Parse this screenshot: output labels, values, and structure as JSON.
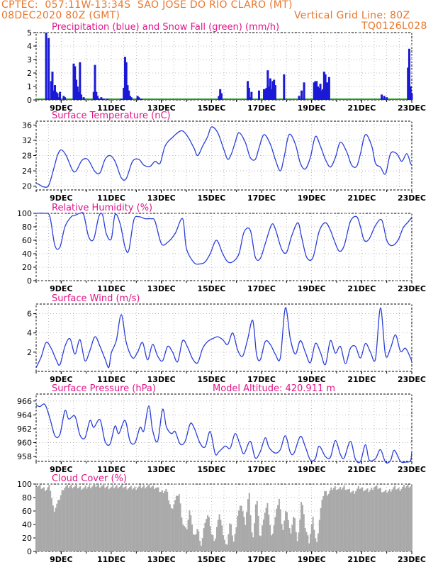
{
  "header": {
    "line1": "CPTEC:  057:11W-13:34S  SAO JOSE DO RIO CLARO (MT)",
    "line2_left": "08DEC2020 80Z (GMT)",
    "line2_right": "Vertical Grid Line: 80Z",
    "code": "TQ0126L028"
  },
  "colors": {
    "header_text": "#e8772e",
    "panel_title": "#e0158a",
    "line": "#2b3fd8",
    "precip_bar": "#1a1ad6",
    "snow_line": "#1a9a1a",
    "cloud_fill": "#a9a9a9",
    "grid": "#aaaaaa"
  },
  "date_ticks": [
    "9DEC",
    "11DEC",
    "13DEC",
    "15DEC",
    "17DEC",
    "19DEC",
    "21DEC",
    "23DEC"
  ],
  "chart_data": [
    {
      "id": "precip",
      "type": "bar",
      "title": "Precipitation (blue) and Snow Fall (green) (mm/h)",
      "ylim": [
        0,
        5
      ],
      "yticks": [
        0,
        1,
        2,
        3,
        4,
        5
      ],
      "grid": true,
      "x_day": [
        8.4,
        8.5,
        8.6,
        8.65,
        8.7,
        8.75,
        8.8,
        8.85,
        8.9,
        8.95,
        9.1,
        9.15,
        9.5,
        9.55,
        9.6,
        9.65,
        9.7,
        9.75,
        9.8,
        9.9,
        10.3,
        10.35,
        10.4,
        10.45,
        10.5,
        10.55,
        10.6,
        10.65,
        10.7,
        10.85,
        11.4,
        11.5,
        11.55,
        11.6,
        11.65,
        11.7,
        11.75,
        11.8,
        12.05,
        12.1,
        12.2,
        15.3,
        15.35,
        15.4,
        16.45,
        16.5,
        16.55,
        16.6,
        16.9,
        17.1,
        17.15,
        17.2,
        17.25,
        17.3,
        17.35,
        17.4,
        17.45,
        17.5,
        17.55,
        17.9,
        18.5,
        18.6,
        18.7,
        19.1,
        19.15,
        19.2,
        19.25,
        19.3,
        19.35,
        19.4,
        19.45,
        19.5,
        19.55,
        19.6,
        19.65,
        19.7,
        21.8,
        21.9,
        22.0,
        22.85,
        22.9,
        22.95,
        23.0
      ],
      "series": [
        {
          "name": "Precipitation",
          "values": [
            5.0,
            4.6,
            1.4,
            2.1,
            0.7,
            1.1,
            0.6,
            0.5,
            0.2,
            0.6,
            0.3,
            0.2,
            2.7,
            2.5,
            1.5,
            1.0,
            0.6,
            2.8,
            0.4,
            0.2,
            0.6,
            2.6,
            0.6,
            0.3,
            0.1,
            0.1,
            0.2,
            0.1,
            0.1,
            0.1,
            0.1,
            0.9,
            3.2,
            2.8,
            1.1,
            0.7,
            0.3,
            0.2,
            0.3,
            0.2,
            0.1,
            0.3,
            0.8,
            0.5,
            1.4,
            0.9,
            0.2,
            0.6,
            0.7,
            0.8,
            0.8,
            0.9,
            2.2,
            1.0,
            1.6,
            0.8,
            1.4,
            1.5,
            1.1,
            1.9,
            0.3,
            0.7,
            1.3,
            1.3,
            1.4,
            1.4,
            1.0,
            0.9,
            1.2,
            0.7,
            0.8,
            2.1,
            1.9,
            1.3,
            1.3,
            1.7,
            0.4,
            0.3,
            0.2,
            2.4,
            3.8,
            1.0,
            0.5
          ]
        },
        {
          "name": "Snow Fall",
          "values": [
            0,
            0
          ]
        }
      ]
    },
    {
      "id": "temp",
      "type": "line",
      "title": "Surface Temperature (nC)",
      "ylim": [
        19,
        37
      ],
      "yticks": [
        20,
        24,
        28,
        32,
        36
      ],
      "grid": true,
      "x_day": [
        8.0,
        8.15,
        8.3,
        8.5,
        8.7,
        8.85,
        9.0,
        9.2,
        9.45,
        9.6,
        9.8,
        9.95,
        10.1,
        10.35,
        10.55,
        10.75,
        10.95,
        11.15,
        11.4,
        11.6,
        11.85,
        12.1,
        12.3,
        12.55,
        12.75,
        12.95,
        13.15,
        13.45,
        13.8,
        14.05,
        14.3,
        14.45,
        14.65,
        14.85,
        15.0,
        15.25,
        15.5,
        15.65,
        15.8,
        15.95,
        16.1,
        16.35,
        16.55,
        16.75,
        16.9,
        17.1,
        17.35,
        17.55,
        17.75,
        17.9,
        18.1,
        18.35,
        18.55,
        18.75,
        18.95,
        19.15,
        19.35,
        19.55,
        19.75,
        19.95,
        20.15,
        20.4,
        20.6,
        20.8,
        20.95,
        21.15,
        21.4,
        21.55,
        21.75,
        21.95,
        22.15,
        22.4,
        22.6,
        22.8,
        22.95,
        23.0
      ],
      "values": [
        20.8,
        20.3,
        19.8,
        20.2,
        24.5,
        28.0,
        29.5,
        28.0,
        24.2,
        24.0,
        26.5,
        27.2,
        26.7,
        23.8,
        23.5,
        27.0,
        28.0,
        26.5,
        22.2,
        22.0,
        26.5,
        27.0,
        25.5,
        25.2,
        26.5,
        26.0,
        30.5,
        32.8,
        34.5,
        33.0,
        30.0,
        28.0,
        30.5,
        33.0,
        35.5,
        34.0,
        29.5,
        27.0,
        28.5,
        31.5,
        34.0,
        31.5,
        27.5,
        27.0,
        30.0,
        33.5,
        31.0,
        27.0,
        24.0,
        27.5,
        33.5,
        31.0,
        26.0,
        24.5,
        27.5,
        33.0,
        30.5,
        27.0,
        25.0,
        27.5,
        31.5,
        29.0,
        25.5,
        25.2,
        28.5,
        33.5,
        30.5,
        26.0,
        25.0,
        23.2,
        28.5,
        28.5,
        26.5,
        28.5,
        26.0,
        25.5
      ]
    },
    {
      "id": "rh",
      "type": "line",
      "title": "Relative Humidity (%)",
      "ylim": [
        0,
        100
      ],
      "yticks": [
        0,
        20,
        40,
        60,
        80,
        100
      ],
      "grid": true,
      "x_day": [
        8.0,
        8.35,
        8.55,
        8.75,
        8.95,
        9.15,
        9.4,
        9.55,
        9.75,
        9.9,
        10.1,
        10.3,
        10.5,
        10.65,
        10.8,
        11.0,
        11.15,
        11.35,
        11.55,
        11.7,
        11.9,
        12.1,
        12.35,
        12.6,
        12.75,
        13.0,
        13.25,
        13.55,
        13.85,
        14.0,
        14.3,
        14.55,
        14.75,
        14.95,
        15.2,
        15.45,
        15.65,
        15.85,
        16.1,
        16.3,
        16.55,
        16.75,
        16.95,
        17.15,
        17.4,
        17.55,
        17.8,
        18.0,
        18.2,
        18.45,
        18.6,
        18.8,
        19.05,
        19.3,
        19.55,
        19.75,
        19.9,
        20.1,
        20.3,
        20.55,
        20.8,
        20.95,
        21.1,
        21.3,
        21.55,
        21.8,
        22.0,
        22.2,
        22.45,
        22.65,
        22.85,
        23.0
      ],
      "values": [
        100,
        100,
        95,
        52,
        50,
        80,
        95,
        97,
        100,
        98,
        65,
        62,
        95,
        98,
        70,
        62,
        98,
        85,
        50,
        45,
        90,
        95,
        92,
        92,
        88,
        55,
        57,
        70,
        92,
        48,
        27,
        25,
        28,
        40,
        60,
        40,
        28,
        28,
        40,
        72,
        75,
        35,
        33,
        55,
        83,
        77,
        47,
        42,
        66,
        86,
        65,
        35,
        34,
        73,
        86,
        75,
        60,
        44,
        52,
        88,
        95,
        80,
        60,
        62,
        82,
        90,
        60,
        52,
        60,
        78,
        87,
        94
      ]
    },
    {
      "id": "wind",
      "type": "line",
      "title": "Surface Wind (m/s)",
      "ylim": [
        0,
        7
      ],
      "yticks": [
        2,
        4,
        6
      ],
      "grid": true,
      "x_day": [
        8.0,
        8.2,
        8.4,
        8.6,
        8.8,
        8.95,
        9.15,
        9.35,
        9.55,
        9.75,
        9.95,
        10.15,
        10.35,
        10.55,
        10.75,
        10.9,
        11.0,
        11.2,
        11.4,
        11.6,
        11.85,
        12.05,
        12.25,
        12.45,
        12.65,
        12.85,
        13.05,
        13.25,
        13.45,
        13.65,
        13.85,
        14.05,
        14.25,
        14.45,
        14.65,
        14.85,
        15.05,
        15.25,
        15.45,
        15.65,
        15.85,
        16.05,
        16.25,
        16.45,
        16.65,
        16.8,
        16.95,
        17.15,
        17.35,
        17.55,
        17.75,
        17.95,
        18.15,
        18.35,
        18.55,
        18.75,
        18.95,
        19.15,
        19.35,
        19.55,
        19.75,
        19.95,
        20.15,
        20.35,
        20.55,
        20.75,
        20.95,
        21.15,
        21.35,
        21.55,
        21.75,
        21.95,
        22.15,
        22.35,
        22.55,
        22.75,
        22.95,
        23.0
      ],
      "values": [
        0.4,
        1.5,
        3.0,
        2.4,
        1.2,
        0.7,
        2.6,
        3.4,
        1.8,
        3.3,
        1.1,
        2.2,
        3.6,
        2.6,
        1.3,
        0.4,
        1.9,
        3.2,
        5.9,
        3.0,
        1.4,
        2.0,
        3.0,
        1.2,
        2.8,
        1.6,
        1.1,
        2.6,
        2.0,
        1.0,
        3.2,
        2.5,
        1.3,
        0.9,
        2.4,
        3.1,
        3.4,
        3.6,
        3.3,
        2.8,
        4.0,
        2.2,
        1.6,
        3.4,
        5.3,
        1.8,
        1.2,
        3.1,
        2.8,
        1.8,
        1.4,
        6.6,
        3.4,
        1.8,
        3.2,
        2.0,
        0.9,
        2.9,
        2.0,
        0.7,
        3.2,
        1.9,
        2.6,
        0.8,
        2.4,
        2.6,
        1.4,
        2.9,
        2.0,
        1.3,
        6.6,
        1.7,
        2.4,
        3.8,
        2.1,
        2.4,
        1.4,
        1.0
      ]
    },
    {
      "id": "pres",
      "type": "line",
      "title": "Surface Pressure (hPa)",
      "annotation": "Model Altitude: 420.911 m",
      "ylim": [
        957.3,
        967.0
      ],
      "yticks": [
        958,
        960,
        962,
        964,
        966
      ],
      "grid": true,
      "x_day": [
        8.0,
        8.15,
        8.35,
        8.55,
        8.75,
        8.95,
        9.15,
        9.3,
        9.55,
        9.75,
        9.95,
        10.15,
        10.3,
        10.55,
        10.75,
        10.95,
        11.15,
        11.3,
        11.55,
        11.75,
        11.95,
        12.15,
        12.3,
        12.5,
        12.65,
        12.85,
        13.05,
        13.2,
        13.4,
        13.55,
        13.75,
        13.95,
        14.15,
        14.3,
        14.55,
        14.75,
        14.95,
        15.15,
        15.3,
        15.55,
        15.75,
        15.95,
        16.15,
        16.3,
        16.55,
        16.75,
        16.95,
        17.15,
        17.3,
        17.55,
        17.75,
        17.95,
        18.15,
        18.3,
        18.55,
        18.75,
        18.95,
        19.15,
        19.3,
        19.55,
        19.75,
        19.95,
        20.15,
        20.3,
        20.55,
        20.75,
        20.95,
        21.15,
        21.3,
        21.55,
        21.75,
        21.95,
        22.15,
        22.3,
        22.55,
        22.75,
        22.95,
        23.0
      ],
      "values": [
        965.4,
        965.2,
        965.5,
        963.5,
        961.0,
        961.2,
        964.6,
        963.4,
        963.8,
        961.1,
        960.7,
        963.2,
        962.2,
        963.3,
        960.2,
        959.8,
        962.4,
        961.3,
        963.2,
        960.2,
        960.0,
        962.2,
        961.7,
        965.3,
        961.8,
        960.2,
        964.8,
        962.3,
        961.3,
        961.6,
        959.8,
        960.2,
        962.7,
        962.2,
        959.9,
        959.4,
        961.6,
        958.4,
        958.7,
        959.5,
        959.2,
        961.3,
        959.6,
        958.4,
        960.2,
        957.8,
        958.7,
        960.7,
        959.3,
        958.5,
        959.0,
        961.0,
        958.6,
        958.5,
        960.9,
        959.4,
        957.5,
        957.7,
        959.5,
        958.0,
        957.9,
        960.3,
        958.3,
        957.8,
        960.2,
        957.6,
        957.3,
        959.7,
        957.5,
        957.7,
        959.0,
        957.2,
        957.4,
        958.9,
        957.3,
        957.2,
        957.4,
        958.8
      ]
    },
    {
      "id": "cloud",
      "type": "area",
      "title": "Cloud Cover (%)",
      "ylim": [
        0,
        100
      ],
      "yticks": [
        0,
        20,
        40,
        60,
        80,
        100
      ],
      "grid": true,
      "x_day": [
        8.0,
        8.2,
        8.4,
        8.55,
        8.7,
        8.9,
        9.1,
        9.4,
        9.6,
        9.9,
        10.2,
        10.5,
        10.8,
        11.0,
        11.3,
        11.6,
        11.9,
        12.2,
        12.5,
        12.8,
        13.0,
        13.2,
        13.4,
        13.7,
        13.85,
        14.0,
        14.15,
        14.3,
        14.45,
        14.6,
        14.75,
        14.9,
        15.0,
        15.15,
        15.3,
        15.45,
        15.6,
        15.75,
        15.9,
        16.05,
        16.2,
        16.35,
        16.5,
        16.65,
        16.8,
        16.95,
        17.1,
        17.25,
        17.4,
        17.55,
        17.7,
        17.85,
        18.0,
        18.15,
        18.3,
        18.45,
        18.6,
        18.75,
        18.9,
        19.05,
        19.2,
        19.35,
        19.5,
        19.65,
        19.8,
        19.95,
        20.1,
        20.3,
        20.5,
        20.7,
        20.9,
        21.1,
        21.3,
        21.5,
        21.7,
        21.9,
        22.1,
        22.3,
        22.5,
        22.7,
        22.9,
        23.0
      ],
      "values": [
        98,
        95,
        92,
        97,
        60,
        75,
        95,
        97,
        96,
        94,
        97,
        98,
        96,
        95,
        97,
        95,
        94,
        96,
        97,
        95,
        88,
        92,
        62,
        88,
        42,
        30,
        65,
        18,
        35,
        8,
        45,
        55,
        25,
        15,
        60,
        30,
        5,
        45,
        12,
        55,
        70,
        40,
        90,
        10,
        85,
        15,
        55,
        70,
        20,
        50,
        80,
        30,
        65,
        25,
        55,
        10,
        80,
        35,
        15,
        50,
        8,
        60,
        90,
        85,
        93,
        95,
        92,
        96,
        90,
        88,
        95,
        92,
        90,
        96,
        94,
        88,
        90,
        95,
        92,
        96,
        98,
        97
      ]
    }
  ]
}
